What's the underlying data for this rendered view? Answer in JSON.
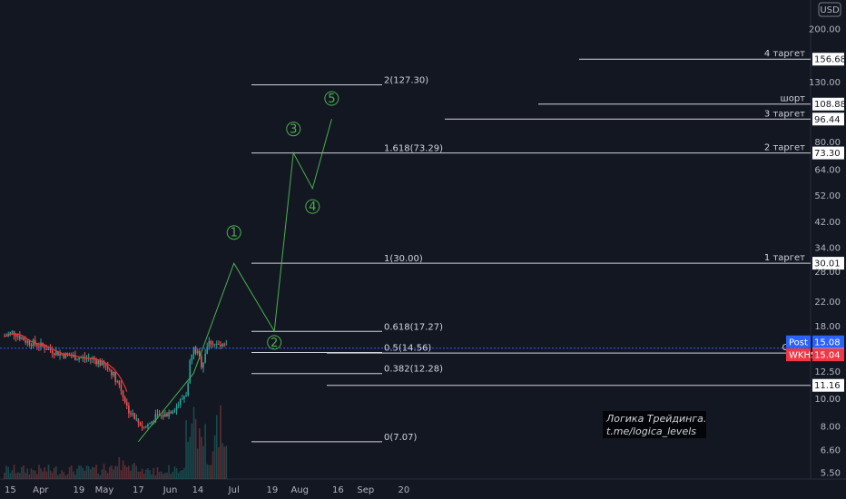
{
  "chart_data": {
    "type": "candlestick",
    "currency": "USD",
    "y_scale": "log",
    "ylim": [
      5.3,
      260
    ],
    "y_ticks": [
      "200.00",
      "130.00",
      "80.00",
      "64.00",
      "52.00",
      "42.00",
      "34.00",
      "28.00",
      "22.00",
      "18.00",
      "12.50",
      "10.00",
      "8.00",
      "6.60",
      "5.50"
    ],
    "x_ticks": [
      "15",
      "Apr",
      "19",
      "May",
      "17",
      "Jun",
      "14",
      "Jul",
      "19",
      "Aug",
      "16",
      "Sep",
      "20"
    ],
    "fib_levels": [
      {
        "label": "2(127.30)",
        "value": 127.3
      },
      {
        "label": "1.618(73.29)",
        "value": 73.29
      },
      {
        "label": "1(30.00)",
        "value": 30.0
      },
      {
        "label": "0.618(17.27)",
        "value": 17.27
      },
      {
        "label": "0.5(14.56)",
        "value": 14.56
      },
      {
        "label": "0.382(12.28)",
        "value": 12.28
      },
      {
        "label": "0(7.07)",
        "value": 7.07
      }
    ],
    "targets": [
      {
        "label": "4 таргет",
        "value": 156.68,
        "price_label": "156.68"
      },
      {
        "label": "шорт",
        "value": 108.88,
        "price_label": "108.88"
      },
      {
        "label": "3 таргет",
        "value": 96.44,
        "price_label": "96.44"
      },
      {
        "label": "2 таргет",
        "value": 73.3,
        "price_label": "73.30"
      },
      {
        "label": "1 таргет",
        "value": 30.01,
        "price_label": "30.01"
      },
      {
        "label": "Стоп",
        "value": 14.5,
        "price_label": "14.50"
      },
      {
        "label": "",
        "value": 11.16,
        "price_label": "11.16"
      }
    ],
    "price_tags": [
      {
        "label": "Post",
        "value": "15.08",
        "color": "#2962ff"
      },
      {
        "label": "WKHS",
        "value": "15.04",
        "color": "#f23645"
      }
    ],
    "wave_labels": [
      "1",
      "2",
      "3",
      "4",
      "5"
    ],
    "note": [
      "Логика Трейдинга.",
      "t.me/logica_levels"
    ],
    "colors": {
      "up": "#26a69a",
      "down": "#ef5350",
      "wave": "#4caf50",
      "ma": "#e53935",
      "background": "#131722"
    }
  }
}
